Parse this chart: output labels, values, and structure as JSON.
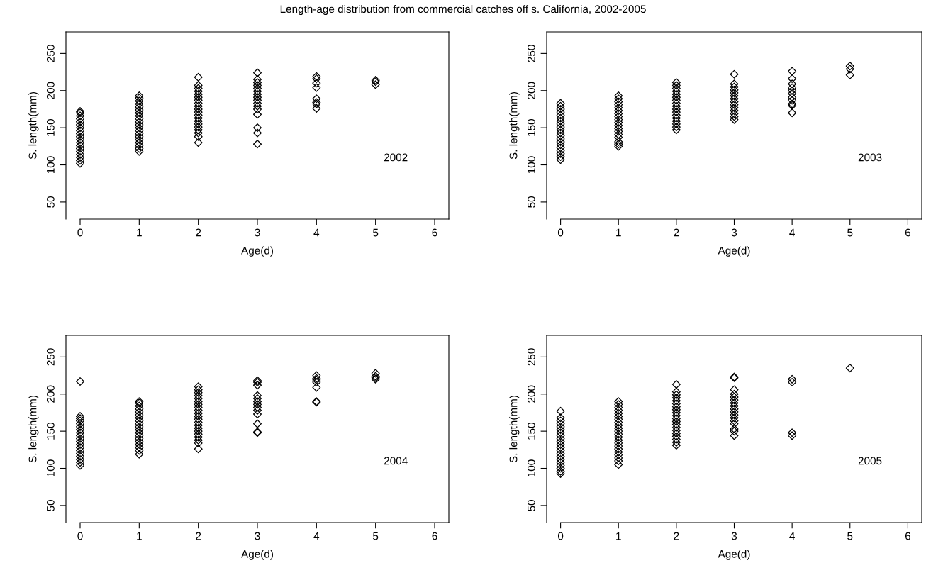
{
  "chart_data": [
    {
      "type": "scatter",
      "title": "Length-age distribution from commercial catches off s. California, 2002-2005",
      "xlabel": "Age(d)",
      "ylabel": "S. length(mm)",
      "annotations": [
        "2002"
      ],
      "xlim": [
        -0.24,
        6.24
      ],
      "ylim": [
        27,
        279
      ],
      "xticks": [
        0,
        1,
        2,
        3,
        4,
        5,
        6
      ],
      "yticks": [
        50,
        100,
        150,
        200,
        250
      ],
      "grid": false,
      "legend": false,
      "marker": "diamond",
      "series": [
        {
          "color": "#000000",
          "x": [
            0,
            0,
            0,
            0,
            0,
            0,
            0,
            0,
            0,
            0,
            0,
            0,
            0,
            0,
            0,
            0,
            0,
            0,
            0,
            1,
            1,
            1,
            1,
            1,
            1,
            1,
            1,
            1,
            1,
            1,
            1,
            1,
            1,
            1,
            1,
            1,
            1,
            1,
            1,
            2,
            2,
            2,
            2,
            2,
            2,
            2,
            2,
            2,
            2,
            2,
            2,
            2,
            2,
            2,
            2,
            2,
            2,
            2,
            2,
            3,
            3,
            3,
            3,
            3,
            3,
            3,
            3,
            3,
            3,
            3,
            3,
            3,
            3,
            3,
            3,
            4,
            4,
            4,
            4,
            4,
            4,
            4,
            4,
            5,
            5,
            5
          ],
          "values": [
            102,
            106,
            110,
            114,
            118,
            122,
            126,
            130,
            134,
            138,
            142,
            146,
            150,
            154,
            158,
            162,
            166,
            170,
            172,
            118,
            122,
            126,
            130,
            134,
            138,
            142,
            146,
            150,
            154,
            158,
            162,
            166,
            170,
            174,
            178,
            182,
            186,
            190,
            193,
            130,
            138,
            143,
            147,
            151,
            155,
            159,
            163,
            167,
            171,
            175,
            179,
            183,
            187,
            191,
            195,
            199,
            203,
            207,
            218,
            128,
            143,
            150,
            168,
            175,
            179,
            183,
            187,
            191,
            195,
            199,
            203,
            207,
            211,
            215,
            224,
            176,
            182,
            184,
            189,
            204,
            210,
            216,
            219,
            208,
            212,
            214
          ]
        }
      ]
    },
    {
      "type": "scatter",
      "xlabel": "Age(d)",
      "ylabel": "S. length(mm)",
      "annotations": [
        "2003"
      ],
      "xlim": [
        -0.24,
        6.24
      ],
      "ylim": [
        27,
        279
      ],
      "xticks": [
        0,
        1,
        2,
        3,
        4,
        5,
        6
      ],
      "yticks": [
        50,
        100,
        150,
        200,
        250
      ],
      "grid": false,
      "legend": false,
      "marker": "diamond",
      "series": [
        {
          "color": "#000000",
          "x": [
            0,
            0,
            0,
            0,
            0,
            0,
            0,
            0,
            0,
            0,
            0,
            0,
            0,
            0,
            0,
            0,
            0,
            0,
            0,
            0,
            1,
            1,
            1,
            1,
            1,
            1,
            1,
            1,
            1,
            1,
            1,
            1,
            1,
            1,
            1,
            1,
            1,
            1,
            2,
            2,
            2,
            2,
            2,
            2,
            2,
            2,
            2,
            2,
            2,
            2,
            2,
            2,
            2,
            2,
            2,
            3,
            3,
            3,
            3,
            3,
            3,
            3,
            3,
            3,
            3,
            3,
            3,
            3,
            3,
            4,
            4,
            4,
            4,
            4,
            4,
            4,
            4,
            4,
            4,
            4,
            5,
            5,
            5
          ],
          "values": [
            107,
            111,
            115,
            119,
            123,
            127,
            131,
            135,
            139,
            143,
            147,
            151,
            155,
            159,
            163,
            167,
            171,
            175,
            179,
            183,
            125,
            128,
            131,
            137,
            141,
            145,
            149,
            153,
            157,
            161,
            165,
            169,
            173,
            177,
            181,
            185,
            189,
            193,
            147,
            151,
            155,
            159,
            163,
            167,
            171,
            175,
            179,
            183,
            187,
            191,
            195,
            199,
            203,
            207,
            211,
            161,
            165,
            169,
            173,
            177,
            181,
            185,
            189,
            193,
            197,
            201,
            205,
            209,
            222,
            170,
            180,
            182,
            187,
            191,
            196,
            200,
            204,
            209,
            216,
            226,
            221,
            229,
            233
          ]
        }
      ]
    },
    {
      "type": "scatter",
      "xlabel": "Age(d)",
      "ylabel": "S. length(mm)",
      "annotations": [
        "2004"
      ],
      "xlim": [
        -0.24,
        6.24
      ],
      "ylim": [
        27,
        279
      ],
      "xticks": [
        0,
        1,
        2,
        3,
        4,
        5,
        6
      ],
      "yticks": [
        50,
        100,
        150,
        200,
        250
      ],
      "grid": false,
      "legend": false,
      "marker": "diamond",
      "series": [
        {
          "color": "#000000",
          "x": [
            0,
            0,
            0,
            0,
            0,
            0,
            0,
            0,
            0,
            0,
            0,
            0,
            0,
            0,
            0,
            0,
            0,
            0,
            0,
            1,
            1,
            1,
            1,
            1,
            1,
            1,
            1,
            1,
            1,
            1,
            1,
            1,
            1,
            1,
            1,
            1,
            1,
            1,
            2,
            2,
            2,
            2,
            2,
            2,
            2,
            2,
            2,
            2,
            2,
            2,
            2,
            2,
            2,
            2,
            2,
            2,
            2,
            2,
            2,
            3,
            3,
            3,
            3,
            3,
            3,
            3,
            3,
            3,
            3,
            3,
            3,
            3,
            4,
            4,
            4,
            4,
            4,
            4,
            4,
            5,
            5,
            5,
            5
          ],
          "values": [
            104,
            108,
            112,
            116,
            120,
            124,
            128,
            132,
            136,
            140,
            144,
            148,
            152,
            156,
            160,
            164,
            167,
            170,
            217,
            119,
            124,
            128,
            132,
            136,
            140,
            144,
            148,
            152,
            156,
            160,
            164,
            168,
            172,
            176,
            180,
            184,
            188,
            190,
            126,
            134,
            138,
            142,
            146,
            150,
            154,
            158,
            162,
            166,
            170,
            174,
            178,
            182,
            186,
            190,
            194,
            198,
            202,
            206,
            210,
            148,
            149,
            160,
            173,
            178,
            182,
            186,
            190,
            194,
            198,
            212,
            216,
            218,
            189,
            190,
            209,
            216,
            219,
            221,
            225,
            220,
            222,
            224,
            228
          ]
        }
      ]
    },
    {
      "type": "scatter",
      "xlabel": "Age(d)",
      "ylabel": "S. length(mm)",
      "annotations": [
        "2005"
      ],
      "xlim": [
        -0.24,
        6.24
      ],
      "ylim": [
        27,
        279
      ],
      "xticks": [
        0,
        1,
        2,
        3,
        4,
        5,
        6
      ],
      "yticks": [
        50,
        100,
        150,
        200,
        250
      ],
      "grid": false,
      "legend": false,
      "marker": "diamond",
      "series": [
        {
          "color": "#000000",
          "x": [
            0,
            0,
            0,
            0,
            0,
            0,
            0,
            0,
            0,
            0,
            0,
            0,
            0,
            0,
            0,
            0,
            0,
            0,
            0,
            0,
            0,
            1,
            1,
            1,
            1,
            1,
            1,
            1,
            1,
            1,
            1,
            1,
            1,
            1,
            1,
            1,
            1,
            1,
            1,
            1,
            1,
            1,
            1,
            2,
            2,
            2,
            2,
            2,
            2,
            2,
            2,
            2,
            2,
            2,
            2,
            2,
            2,
            2,
            2,
            2,
            2,
            2,
            2,
            3,
            3,
            3,
            3,
            3,
            3,
            3,
            3,
            3,
            3,
            3,
            3,
            3,
            3,
            3,
            3,
            3,
            4,
            4,
            4,
            4,
            5
          ],
          "values": [
            93,
            96,
            100,
            104,
            108,
            112,
            116,
            120,
            124,
            128,
            132,
            136,
            140,
            144,
            148,
            152,
            156,
            160,
            164,
            168,
            177,
            105,
            110,
            114,
            118,
            122,
            126,
            130,
            134,
            138,
            142,
            146,
            150,
            154,
            158,
            162,
            166,
            170,
            174,
            178,
            182,
            186,
            190,
            131,
            135,
            139,
            143,
            147,
            151,
            155,
            159,
            163,
            167,
            171,
            175,
            179,
            183,
            187,
            191,
            195,
            199,
            203,
            213,
            144,
            150,
            153,
            160,
            164,
            168,
            172,
            176,
            180,
            184,
            188,
            192,
            196,
            200,
            206,
            222,
            223,
            144,
            148,
            216,
            220,
            235
          ]
        }
      ]
    }
  ]
}
